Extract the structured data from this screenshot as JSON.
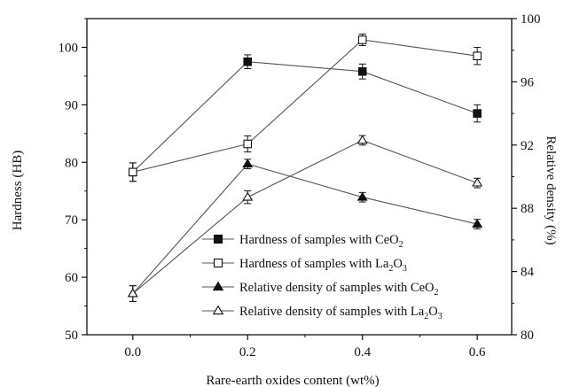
{
  "chart_data": {
    "type": "line",
    "xlabel": "Rare-earth oxides content (wt%)",
    "ylabel": "Hardness (HB)",
    "y2label": "Relative density (%)",
    "x": [
      0.0,
      0.2,
      0.4,
      0.6
    ],
    "x_tick_labels": [
      "0.0",
      "0.2",
      "0.4",
      "0.6"
    ],
    "xlim": [
      -0.08,
      0.66
    ],
    "ylim": [
      50,
      105
    ],
    "y_ticks": [
      50,
      60,
      70,
      80,
      90,
      100
    ],
    "y_tick_labels": [
      "50",
      "60",
      "70",
      "80",
      "90",
      "100"
    ],
    "y2lim": [
      80,
      100
    ],
    "y2_ticks": [
      80,
      84,
      88,
      92,
      96,
      100
    ],
    "y2_tick_labels": [
      "80",
      "84",
      "88",
      "92",
      "96",
      "100"
    ],
    "legend_position": "lower-right",
    "grid": false,
    "series": [
      {
        "name": "Hardness of samples with CeO2",
        "legend_base": "Hardness of samples with CeO",
        "legend_sub": "2",
        "axis": "left",
        "marker": "square-filled",
        "values": [
          78.3,
          97.5,
          95.8,
          88.5
        ],
        "errors": [
          1.6,
          1.2,
          1.3,
          1.5
        ]
      },
      {
        "name": "Hardness of samples with La2O3",
        "legend_base": "Hardness of samples with La",
        "legend_sub": "2",
        "legend_mid": "O",
        "legend_sub2": "3",
        "axis": "left",
        "marker": "square-open",
        "values": [
          78.3,
          83.2,
          101.3,
          98.5
        ],
        "errors": [
          1.6,
          1.4,
          1.0,
          1.5
        ]
      },
      {
        "name": "Relative density of samples with CeO2",
        "legend_base": "Relative density of samples with CeO",
        "legend_sub": "2",
        "axis": "right",
        "marker": "triangle-filled",
        "values": [
          82.6,
          90.8,
          88.7,
          87.0
        ],
        "errors": [
          0.5,
          0.3,
          0.3,
          0.3
        ]
      },
      {
        "name": "Relative density of samples with La2O3",
        "legend_base": "Relative density of samples with La",
        "legend_sub": "2",
        "legend_mid": "O",
        "legend_sub2": "3",
        "axis": "right",
        "marker": "triangle-open",
        "values": [
          82.6,
          88.7,
          92.3,
          89.6
        ],
        "errors": [
          0.5,
          0.4,
          0.3,
          0.3
        ]
      }
    ],
    "colors": {
      "line": "#555555",
      "marker": "#111111",
      "axis": "#111111"
    }
  }
}
